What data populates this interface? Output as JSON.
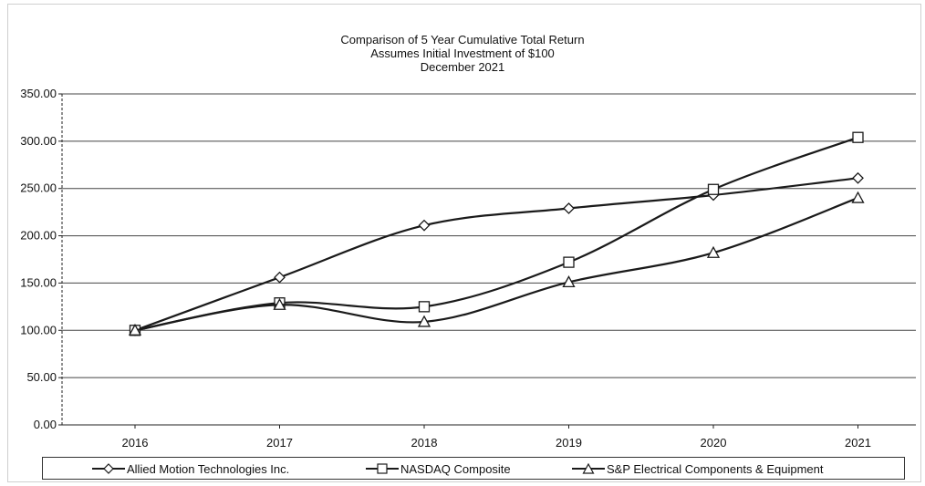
{
  "chart_data": {
    "type": "line",
    "title": "Comparison of 5 Year Cumulative Total Return",
    "subtitle": [
      "Assumes Initial Investment of $100",
      "December 2021"
    ],
    "categories": [
      "2016",
      "2017",
      "2018",
      "2019",
      "2020",
      "2021"
    ],
    "ylim": [
      0,
      350
    ],
    "yticks": [
      "0.00",
      "50.00",
      "100.00",
      "150.00",
      "200.00",
      "250.00",
      "300.00",
      "350.00"
    ],
    "grid": true,
    "legend_position": "bottom",
    "series": [
      {
        "name": "Allied Motion Technologies Inc.",
        "marker": "diamond",
        "values": [
          100,
          156,
          211,
          229,
          243,
          261
        ]
      },
      {
        "name": "NASDAQ Composite",
        "marker": "square",
        "values": [
          100,
          129,
          125,
          172,
          249,
          304
        ]
      },
      {
        "name": "S&P Electrical Components & Equipment",
        "marker": "triangle",
        "values": [
          100,
          127,
          109,
          151,
          182,
          240
        ]
      }
    ],
    "line_color": "#1a1a1a",
    "grid_color": "#444444"
  }
}
